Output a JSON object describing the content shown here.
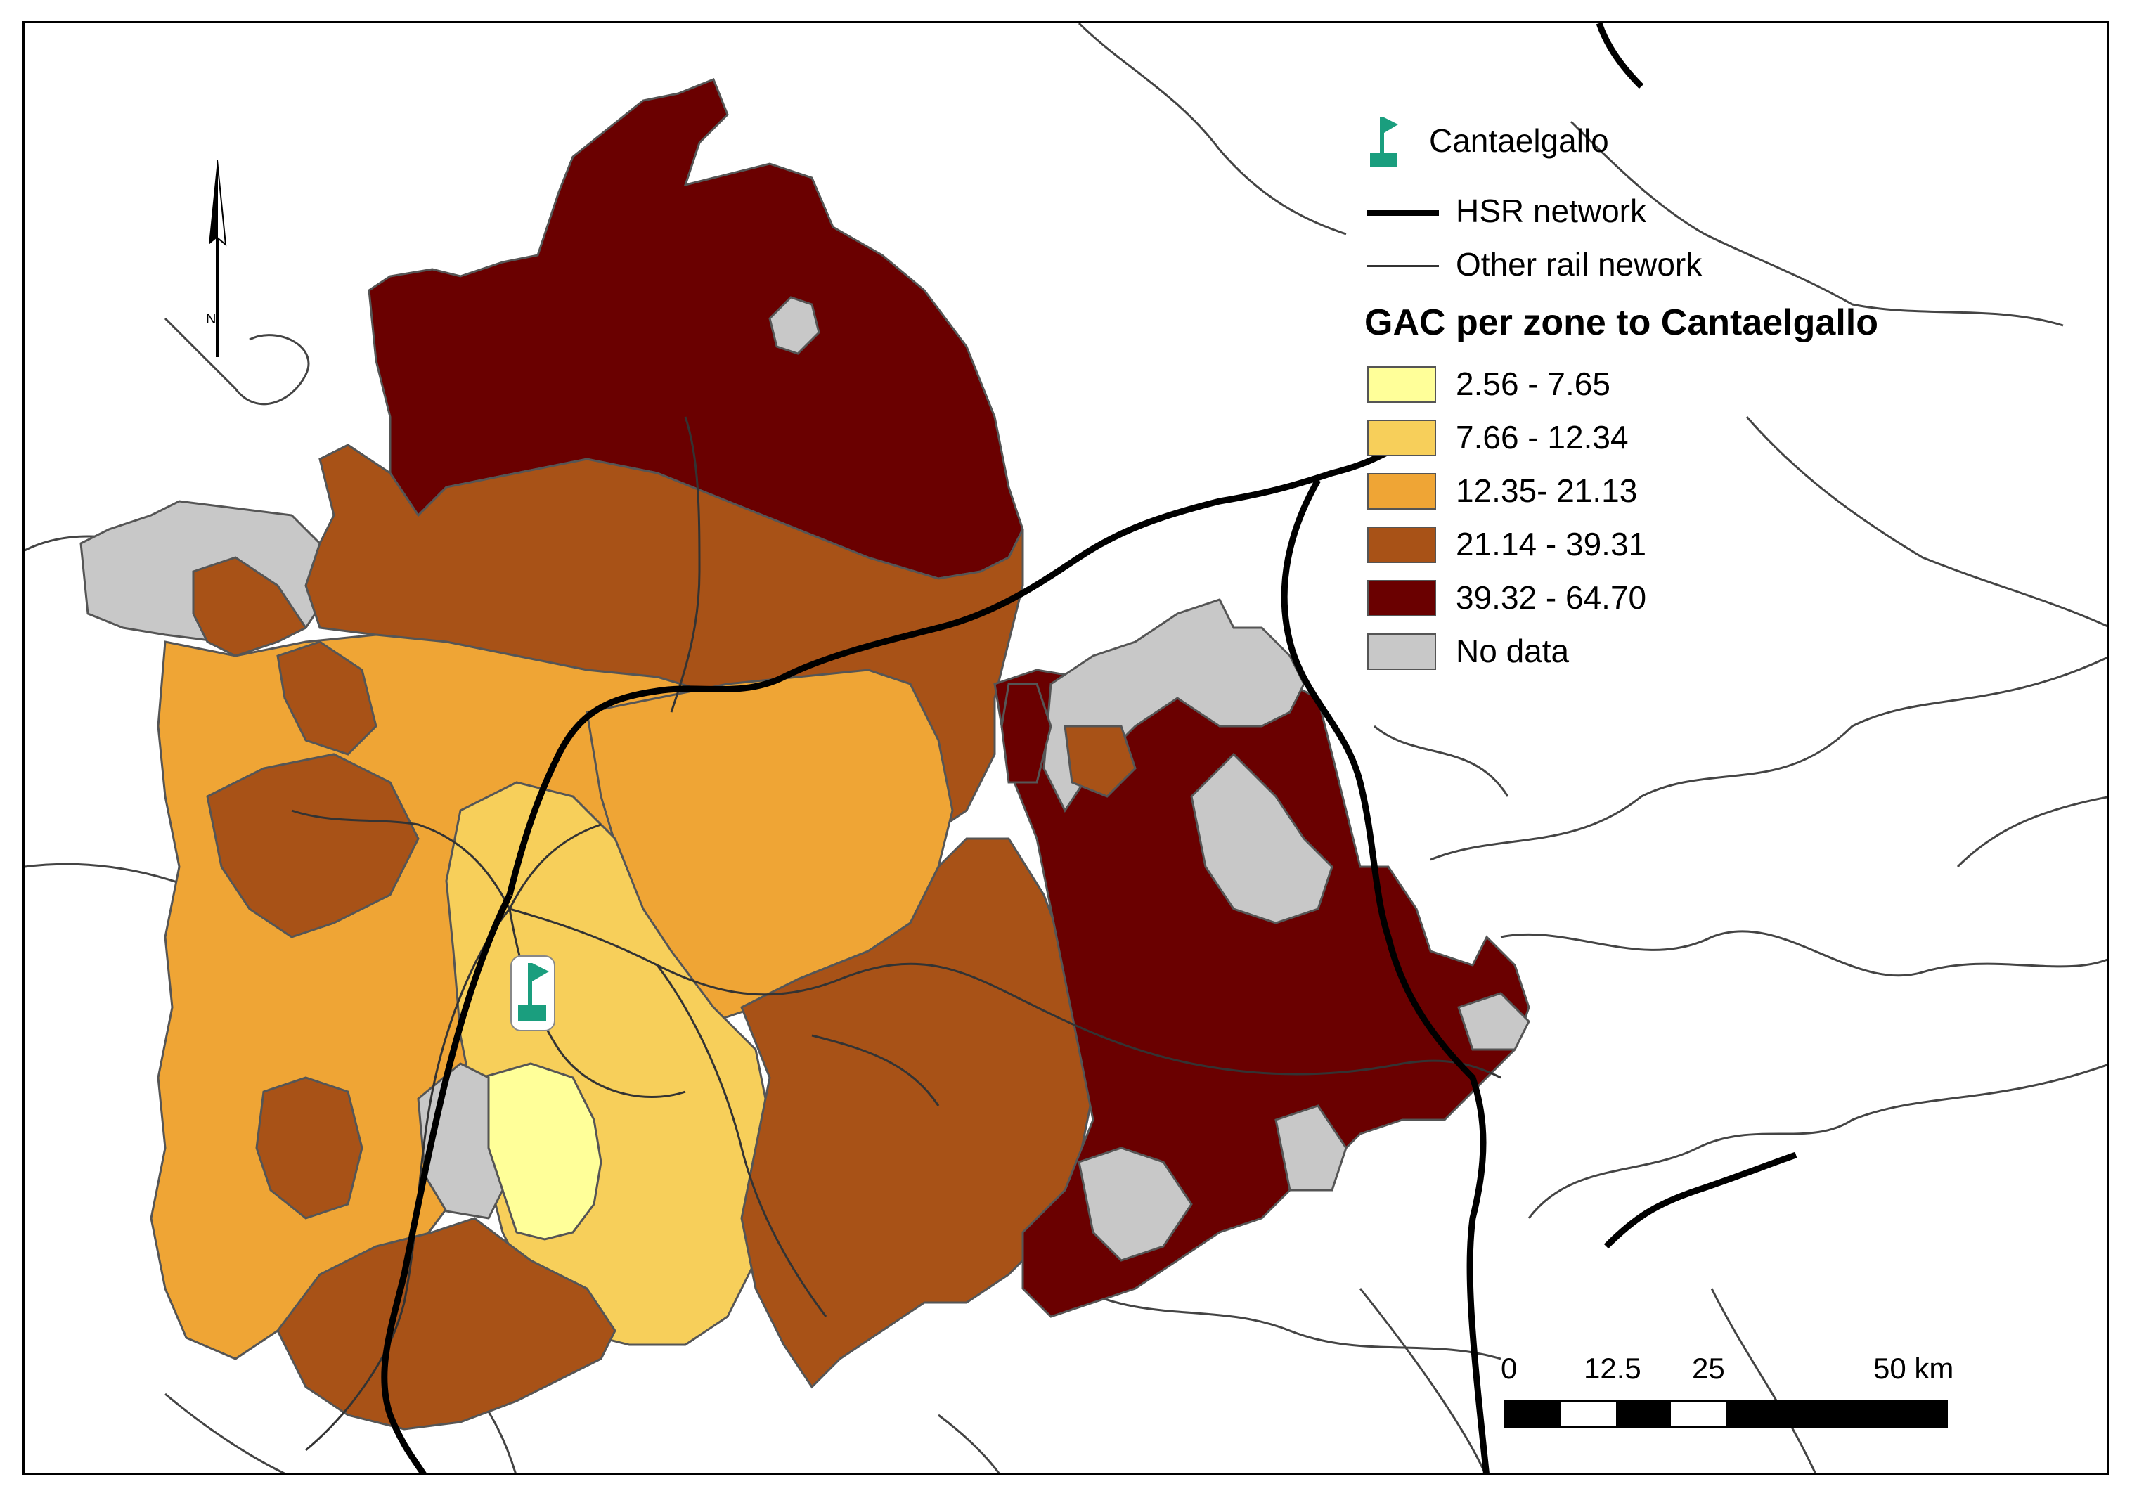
{
  "legend": {
    "site_label": "Cantaelgallo",
    "hsr_label": "HSR network",
    "rail_label": "Other rail nework",
    "title": "GAC per zone to Cantaelgallo",
    "classes": [
      {
        "label": "2.56 - 7.65",
        "color": "#FFFF99"
      },
      {
        "label": "7.66 - 12.34",
        "color": "#F7CF5A"
      },
      {
        "label": "12.35- 21.13",
        "color": "#EFA535"
      },
      {
        "label": "21.14 - 39.31",
        "color": "#A85217"
      },
      {
        "label": "39.32 - 64.70",
        "color": "#6A0000"
      },
      {
        "label": "No data",
        "color": "#C8C8C8"
      }
    ]
  },
  "scalebar": {
    "ticks": [
      "0",
      "12.5",
      "25",
      "50 km"
    ]
  },
  "colors": {
    "site_marker": "#1A9E7E",
    "boundary": "#555555",
    "river": "#444444"
  },
  "icons": {
    "north_arrow": "north-arrow-icon",
    "site": "flag-icon"
  }
}
